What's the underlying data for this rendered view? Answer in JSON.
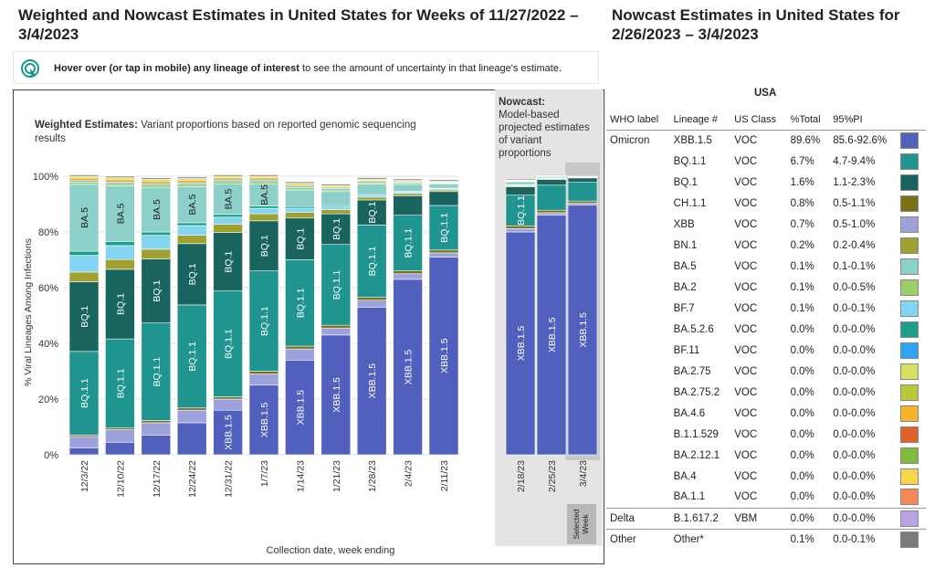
{
  "titles": {
    "left": "Weighted and Nowcast Estimates in United States for Weeks of 11/27/2022 – 3/4/2023",
    "right": "Nowcast Estimates in United States for 2/26/2023 – 3/4/2023"
  },
  "hover": {
    "bold": "Hover over (or tap in mobile) any lineage of interest",
    "rest": " to see the amount of uncertainty in that lineage's estimate."
  },
  "weighted_label": {
    "bold": "Weighted Estimates:",
    "line1": " Variant proportions based on reported genomic sequencing",
    "line2": "results"
  },
  "nowcast_label": {
    "bold": "Nowcast:",
    "lines": [
      "Model-based",
      "projected estimates",
      "of variant",
      "proportions"
    ]
  },
  "selected_week": [
    "Selected",
    "Week"
  ],
  "colors": {
    "XBB.1.5": "#5160bd",
    "BQ.1.1": "#20948f",
    "BQ.1": "#1a6460",
    "CH.1.1": "#7a7018",
    "XBB": "#9da1dc",
    "BN.1": "#a0a030",
    "BA.5": "#8dd0c9",
    "BA.2": "#9bd068",
    "BF.7": "#84d5f2",
    "BA.5.2.6": "#1aa08a",
    "BF.11": "#2da5f2",
    "BA.2.75": "#d6e060",
    "BA.2.75.2": "#b8c83a",
    "BA.4.6": "#f7b32b",
    "B.1.1.529": "#e0622a",
    "BA.2.12.1": "#80bb3c",
    "BA.4": "#f7d64a",
    "BA.1.1": "#f7885a",
    "B.1.617.2": "#b7a3e0",
    "Other": "#7b7b7b"
  },
  "chart_data": {
    "type": "bar",
    "stacked": true,
    "title": "Weighted Estimates: Variant proportions based on reported genomic sequencing results",
    "xlabel": "Collection date, week ending",
    "ylabel": "% Viral Lineages Among Infections",
    "ylim": [
      0,
      100
    ],
    "yticks": [
      "0%",
      "20%",
      "40%",
      "60%",
      "80%",
      "100%"
    ],
    "categories": [
      "12/3/22",
      "12/10/22",
      "12/17/22",
      "12/24/22",
      "12/31/22",
      "1/7/23",
      "1/14/23",
      "1/21/23",
      "1/28/23",
      "2/4/23",
      "2/11/23",
      "2/18/23",
      "2/25/23",
      "3/4/23"
    ],
    "nowcast_categories": [
      "2/18/23",
      "2/25/23",
      "3/4/23"
    ],
    "selected_category": "3/4/23",
    "series": [
      {
        "name": "XBB.1.5",
        "values": [
          2.5,
          4.5,
          7,
          11.5,
          16,
          25,
          34,
          43,
          53,
          63,
          71,
          80,
          86,
          89.6
        ]
      },
      {
        "name": "XBB",
        "values": [
          4,
          4.5,
          4.5,
          4.5,
          4,
          4,
          4,
          2.5,
          2.5,
          2,
          1.5,
          1.2,
          0.9,
          0.7
        ]
      },
      {
        "name": "CH.1.1",
        "values": [
          0.6,
          0.6,
          0.8,
          0.8,
          0.8,
          1,
          1,
          1,
          1,
          1,
          1,
          1,
          0.9,
          0.8
        ]
      },
      {
        "name": "BQ.1.1",
        "values": [
          30,
          32,
          35,
          37,
          38,
          36,
          31,
          29,
          26,
          20,
          16,
          11,
          9,
          6.7
        ]
      },
      {
        "name": "BQ.1",
        "values": [
          25,
          25,
          23,
          22,
          21,
          18,
          15,
          11,
          9,
          7,
          5,
          3,
          2,
          1.6
        ]
      },
      {
        "name": "BN.1",
        "values": [
          3.5,
          3.5,
          3.5,
          3,
          3,
          2.5,
          2,
          1.5,
          1,
          0.8,
          0.6,
          0.4,
          0.3,
          0.2
        ]
      },
      {
        "name": "BF.7",
        "values": [
          6,
          5,
          5,
          3.5,
          2.5,
          2,
          1.5,
          1,
          0.8,
          0.5,
          0.4,
          0.3,
          0.2,
          0.1
        ]
      },
      {
        "name": "BA.5.2.6",
        "values": [
          1.5,
          1.5,
          1.2,
          1,
          1,
          0.8,
          0.6,
          0.5,
          0.4,
          0.3,
          0.2,
          0.1,
          0.1,
          0
        ]
      },
      {
        "name": "BA.5",
        "values": [
          24,
          20,
          16,
          13,
          11,
          8,
          6,
          5,
          3.5,
          2.5,
          1.5,
          1,
          0.5,
          0.1
        ]
      },
      {
        "name": "BA.2",
        "values": [
          0.8,
          0.8,
          0.8,
          0.8,
          0.8,
          0.8,
          0.8,
          0.6,
          0.5,
          0.4,
          0.3,
          0.2,
          0.1,
          0.1
        ]
      },
      {
        "name": "BF.11",
        "values": [
          0.5,
          0.5,
          0.5,
          0.5,
          0.5,
          0.5,
          0.5,
          0.5,
          0.4,
          0.3,
          0.2,
          0.1,
          0.1,
          0
        ]
      },
      {
        "name": "BA.4.6",
        "values": [
          1,
          1,
          1,
          1,
          0.8,
          0.8,
          0.6,
          0.5,
          0.4,
          0.3,
          0.2,
          0.1,
          0.1,
          0
        ]
      },
      {
        "name": "BA.2.75",
        "values": [
          0.6,
          0.6,
          0.6,
          0.6,
          0.6,
          0.6,
          0.5,
          0.5,
          0.5,
          0.4,
          0.3,
          0.2,
          0.1,
          0
        ]
      },
      {
        "name": "Other",
        "values": [
          0.5,
          0.5,
          0.5,
          0.5,
          0.5,
          0.5,
          0.5,
          0.5,
          0.5,
          0.5,
          0.5,
          0.4,
          0.3,
          0.1
        ]
      }
    ],
    "bar_labels": {
      "BA.5": [
        true,
        true,
        true,
        true,
        true,
        true,
        false,
        false,
        false,
        false,
        false,
        false,
        false,
        false
      ],
      "BQ.1": [
        true,
        true,
        true,
        true,
        true,
        true,
        true,
        true,
        true,
        false,
        false,
        false,
        false,
        false
      ],
      "BQ.1.1": [
        true,
        true,
        true,
        true,
        true,
        true,
        true,
        true,
        true,
        true,
        true,
        true,
        false,
        false
      ],
      "XBB.1.5": [
        false,
        false,
        false,
        false,
        true,
        true,
        true,
        true,
        true,
        true,
        true,
        true,
        true,
        true
      ]
    }
  },
  "table": {
    "region": "USA",
    "headers": [
      "WHO label",
      "Lineage #",
      "US Class",
      "%Total",
      "95%PI"
    ],
    "rows": [
      {
        "who": "Omicron",
        "lineage": "XBB.1.5",
        "cls": "VOC",
        "total": "89.6%",
        "pi": "85.6-92.6%",
        "color": "#5160bd"
      },
      {
        "who": "",
        "lineage": "BQ.1.1",
        "cls": "VOC",
        "total": "6.7%",
        "pi": "4.7-9.4%",
        "color": "#20948f"
      },
      {
        "who": "",
        "lineage": "BQ.1",
        "cls": "VOC",
        "total": "1.6%",
        "pi": "1.1-2.3%",
        "color": "#1a6460"
      },
      {
        "who": "",
        "lineage": "CH.1.1",
        "cls": "VOC",
        "total": "0.8%",
        "pi": "0.5-1.1%",
        "color": "#7a7018"
      },
      {
        "who": "",
        "lineage": "XBB",
        "cls": "VOC",
        "total": "0.7%",
        "pi": "0.5-1.0%",
        "color": "#9da1dc"
      },
      {
        "who": "",
        "lineage": "BN.1",
        "cls": "VOC",
        "total": "0.2%",
        "pi": "0.2-0.4%",
        "color": "#a0a030"
      },
      {
        "who": "",
        "lineage": "BA.5",
        "cls": "VOC",
        "total": "0.1%",
        "pi": "0.1-0.1%",
        "color": "#8dd0c9"
      },
      {
        "who": "",
        "lineage": "BA.2",
        "cls": "VOC",
        "total": "0.1%",
        "pi": "0.0-0.5%",
        "color": "#9bd068"
      },
      {
        "who": "",
        "lineage": "BF.7",
        "cls": "VOC",
        "total": "0.1%",
        "pi": "0.0-0.1%",
        "color": "#84d5f2"
      },
      {
        "who": "",
        "lineage": "BA.5.2.6",
        "cls": "VOC",
        "total": "0.0%",
        "pi": "0.0-0.0%",
        "color": "#1aa08a"
      },
      {
        "who": "",
        "lineage": "BF.11",
        "cls": "VOC",
        "total": "0.0%",
        "pi": "0.0-0.0%",
        "color": "#2da5f2"
      },
      {
        "who": "",
        "lineage": "BA.2.75",
        "cls": "VOC",
        "total": "0.0%",
        "pi": "0.0-0.0%",
        "color": "#d6e060"
      },
      {
        "who": "",
        "lineage": "BA.2.75.2",
        "cls": "VOC",
        "total": "0.0%",
        "pi": "0.0-0.0%",
        "color": "#b8c83a"
      },
      {
        "who": "",
        "lineage": "BA.4.6",
        "cls": "VOC",
        "total": "0.0%",
        "pi": "0.0-0.0%",
        "color": "#f7b32b"
      },
      {
        "who": "",
        "lineage": "B.1.1.529",
        "cls": "VOC",
        "total": "0.0%",
        "pi": "0.0-0.0%",
        "color": "#e0622a"
      },
      {
        "who": "",
        "lineage": "BA.2.12.1",
        "cls": "VOC",
        "total": "0.0%",
        "pi": "0.0-0.0%",
        "color": "#80bb3c"
      },
      {
        "who": "",
        "lineage": "BA.4",
        "cls": "VOC",
        "total": "0.0%",
        "pi": "0.0-0.0%",
        "color": "#f7d64a"
      },
      {
        "who": "",
        "lineage": "BA.1.1",
        "cls": "VOC",
        "total": "0.0%",
        "pi": "0.0-0.0%",
        "color": "#f7885a"
      },
      {
        "who": "Delta",
        "lineage": "B.1.617.2",
        "cls": "VBM",
        "total": "0.0%",
        "pi": "0.0-0.0%",
        "color": "#b7a3e0",
        "sep": true
      },
      {
        "who": "Other",
        "lineage": "Other*",
        "cls": "",
        "total": "0.1%",
        "pi": "0.0-0.1%",
        "color": "#7b7b7b",
        "sep": true
      }
    ]
  }
}
